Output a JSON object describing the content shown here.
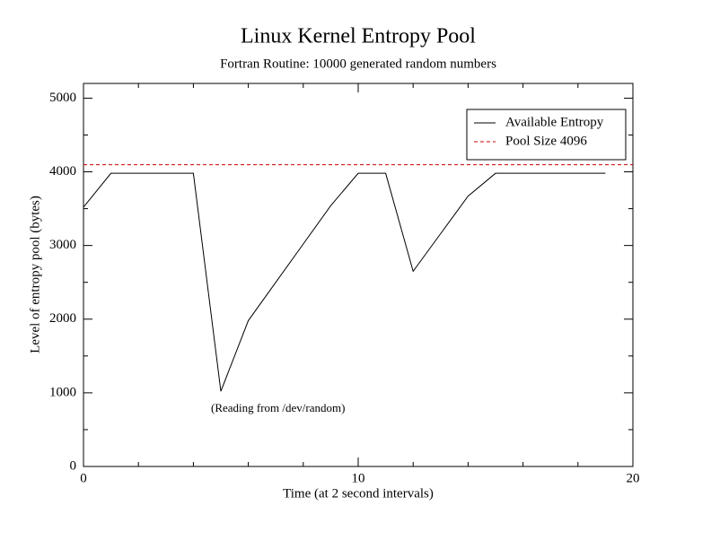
{
  "chart_data": {
    "type": "line",
    "title": "Linux Kernel Entropy Pool",
    "subtitle": "Fortran Routine: 10000 generated random numbers",
    "x_label": "Time (at 2 second intervals)",
    "y_label": "Level of entropy pool (bytes)",
    "annotation": "(Reading from /dev/random)",
    "x": [
      0,
      1,
      2,
      3,
      4,
      5,
      6,
      7,
      8,
      9,
      10,
      11,
      12,
      13,
      14,
      15,
      16,
      17,
      18,
      19
    ],
    "series": [
      {
        "name": "Available Entropy",
        "color": "#000000",
        "values": [
          3520,
          3980,
          3980,
          3980,
          3980,
          1020,
          1980,
          2500,
          3020,
          3540,
          3980,
          3980,
          2650,
          3160,
          3670,
          3980,
          3980,
          3980,
          3980,
          3980
        ]
      }
    ],
    "hline": {
      "name": "Pool Size 4096",
      "value": 4096,
      "color": "#cc0000",
      "dashed": true
    },
    "xlim": [
      0,
      20
    ],
    "xticks": [
      0,
      10,
      20
    ],
    "ylim": [
      0,
      5200
    ],
    "yticks": [
      0,
      1000,
      2000,
      3000,
      4000,
      5000
    ],
    "legend": "upper right",
    "grid": false
  }
}
